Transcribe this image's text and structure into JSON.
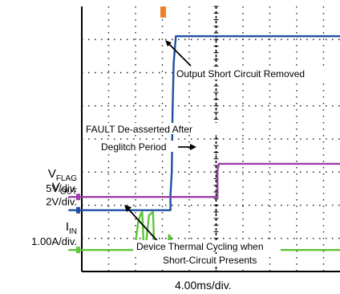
{
  "chart_data": {
    "type": "line",
    "title": "",
    "xlabel": "4.00ms/div.",
    "grid": true,
    "divisions": {
      "x": 10,
      "y": 8
    },
    "channels": [
      {
        "key": "vout",
        "name_main": "V",
        "name_sub": "OUT",
        "scale": "2V/div.",
        "color": "#1f4fa3"
      },
      {
        "key": "vflag",
        "name_main": "V",
        "name_sub": "FLAG",
        "scale": "5V/div.",
        "color": "#9b3fa8"
      },
      {
        "key": "iin",
        "name_main": "I",
        "name_sub": "IN",
        "scale": "1.00A/div.",
        "color": "#5ec43a"
      }
    ],
    "series": [
      {
        "channel": "vout",
        "x": [
          -0.5,
          3.3,
          3.3,
          3.35,
          3.38,
          3.42,
          3.5,
          10
        ],
        "y": [
          6.15,
          6.15,
          5.7,
          5.0,
          3.2,
          1.7,
          0.9,
          0.9
        ]
      },
      {
        "channel": "vflag",
        "x": [
          -0.5,
          5.05,
          5.05,
          5.1,
          10
        ],
        "y": [
          5.75,
          5.75,
          4.95,
          4.75,
          4.75
        ]
      },
      {
        "channel": "iin",
        "x": [
          -0.5,
          2.0,
          2.02,
          2.1,
          2.2,
          2.25,
          2.3,
          2.38,
          2.5,
          2.58,
          2.65,
          2.7,
          2.78,
          3.2,
          3.25,
          3.3,
          3.35,
          10
        ],
        "y": [
          7.35,
          7.35,
          7.0,
          6.5,
          6.25,
          6.2,
          7.2,
          7.25,
          6.3,
          6.25,
          6.2,
          7.3,
          7.35,
          7.35,
          6.9,
          6.95,
          7.35,
          7.35
        ]
      }
    ],
    "annotations": [
      {
        "id": "short-removed",
        "text": "Output Short Circuit Removed"
      },
      {
        "id": "fault-deasserted",
        "lines": [
          "FAULT De-asserted After",
          "Deglitch Period"
        ]
      },
      {
        "id": "thermal-cycling",
        "lines": [
          "Device Thermal Cycling when",
          "Short-Circuit Presents"
        ]
      }
    ]
  }
}
